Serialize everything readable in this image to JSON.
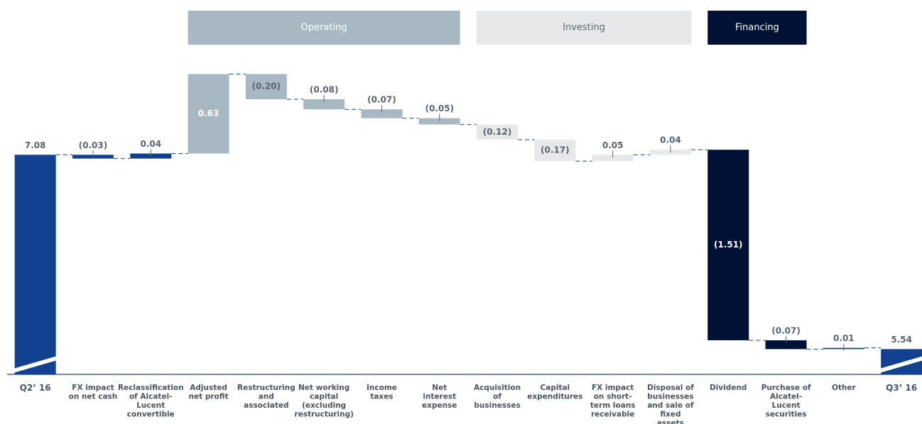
{
  "chart_data": {
    "type": "waterfall",
    "categories": [
      "Q2’ 16",
      "FX impact on net cash",
      "Reclassification of Alcatel-Lucent convertible",
      "Adjusted net profit",
      "Restructuring and associated",
      "Net working capital (excluding restructuring)",
      "Income taxes",
      "Net interest expense",
      "Acquisition of businesses",
      "Capital expenditures",
      "FX impact on short-term loans receivable",
      "Disposal of businesses and sale of fixed assets",
      "Dividend",
      "Purchase of Alcatel-Lucent securities",
      "Other",
      "Q3’ 16"
    ],
    "values": [
      7.08,
      -0.03,
      0.04,
      0.63,
      -0.2,
      -0.08,
      -0.07,
      -0.05,
      -0.12,
      -0.17,
      0.05,
      0.04,
      -1.51,
      -0.07,
      0.01,
      5.54
    ],
    "value_labels": [
      "7.08",
      "(0.03)",
      "0.04",
      "0.63",
      "(0.20)",
      "(0.08)",
      "(0.07)",
      "(0.05)",
      "(0.12)",
      "(0.17)",
      "0.05",
      "0.04",
      "(1.51)",
      "(0.07)",
      "0.01",
      "5.54"
    ],
    "totals": [
      0,
      15
    ],
    "colors": [
      "#124191",
      "#124191",
      "#124191",
      "#a7b8c2",
      "#a7b8c2",
      "#a7b8c2",
      "#a7b8c2",
      "#a7b8c2",
      "#e6e8ea",
      "#e6e8ea",
      "#e6e8ea",
      "#e6e8ea",
      "#001135",
      "#001135",
      "#124191",
      "#124191"
    ],
    "groups": [
      {
        "name": "Operating",
        "color": "#a7b8c2",
        "text_color": "#ffffff",
        "start": 3,
        "end": 7
      },
      {
        "name": "Investing",
        "color": "#e6e8ea",
        "text_color": "#5a6470",
        "start": 8,
        "end": 11
      },
      {
        "name": "Financing",
        "color": "#001135",
        "text_color": "#ffffff",
        "start": 12,
        "end": 13
      }
    ],
    "ylim": [
      5.34,
      7.9
    ]
  }
}
